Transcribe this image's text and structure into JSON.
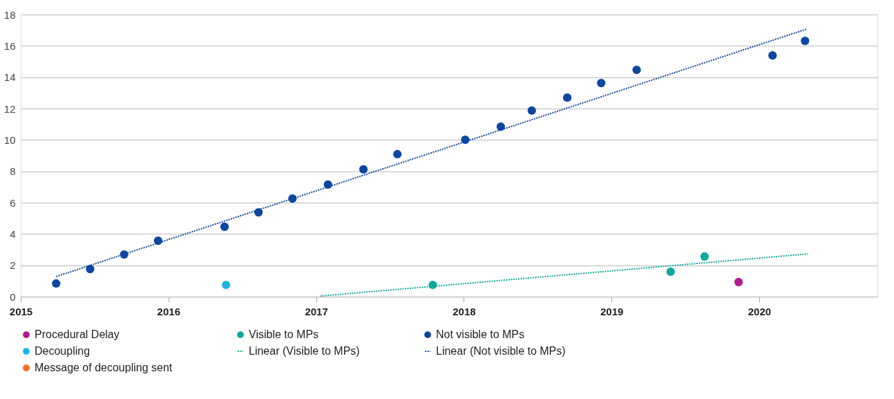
{
  "chart_data": {
    "type": "scatter",
    "xlim": [
      2015,
      2020.8
    ],
    "xticks": [
      2015,
      2016,
      2017,
      2018,
      2019,
      2020
    ],
    "ylim": [
      0,
      18
    ],
    "yticks": [
      0,
      2,
      4,
      6,
      8,
      10,
      12,
      14,
      16,
      18
    ],
    "grid": "y",
    "legend": "bottom",
    "series": [
      {
        "name": "Procedural Delay",
        "marker": "circle",
        "color": "#b5198f",
        "x": [
          2019.86
        ],
        "values": [
          0.93
        ]
      },
      {
        "name": "Visible to MPs",
        "marker": "circle",
        "color": "#12a79b",
        "x": [
          2017.79,
          2019.4,
          2019.63
        ],
        "values": [
          0.75,
          1.59,
          2.56
        ]
      },
      {
        "name": "Not visible to MPs",
        "marker": "circle",
        "color": "#0d47a1",
        "x": [
          2015.24,
          2015.47,
          2015.7,
          2015.93,
          2016.38,
          2016.61,
          2016.84,
          2017.08,
          2017.32,
          2017.55,
          2018.01,
          2018.25,
          2018.46,
          2018.7,
          2018.93,
          2019.17,
          2020.09,
          2020.31
        ],
        "values": [
          0.84,
          1.76,
          2.69,
          3.57,
          4.46,
          5.38,
          6.26,
          7.15,
          8.12,
          9.09,
          10.01,
          10.85,
          11.87,
          12.7,
          13.63,
          14.47,
          15.39,
          16.32
        ]
      },
      {
        "name": "Decoupling",
        "marker": "circle",
        "color": "#1cb5e3",
        "x": [
          2016.39
        ],
        "values": [
          0.75
        ]
      },
      {
        "name": "Linear (Visible to MPs)",
        "type": "line",
        "marker": "none",
        "line_style": "dotted",
        "color": "#12a79b",
        "x": [
          2017.03,
          2020.33
        ],
        "values": [
          0.04,
          2.73
        ]
      },
      {
        "name": "Linear (Not visible to MPs)",
        "type": "line",
        "marker": "none",
        "line_style": "dotted",
        "color": "#0d47a1",
        "x": [
          2015.24,
          2020.32
        ],
        "values": [
          1.28,
          17.07
        ]
      },
      {
        "name": "Message of decoupling sent",
        "marker": "circle",
        "color": "#f37021"
      }
    ]
  }
}
